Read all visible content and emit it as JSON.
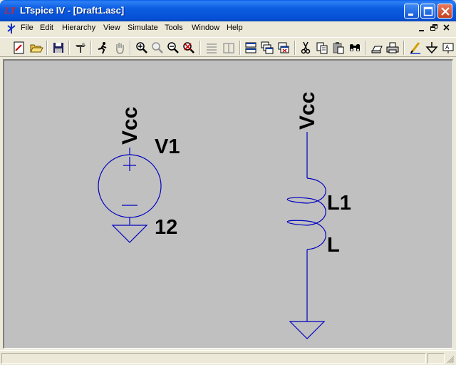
{
  "window": {
    "title": "LTspice IV - [Draft1.asc]",
    "logo_text": "LT"
  },
  "menu": {
    "file": "File",
    "edit": "Edit",
    "hierarchy": "Hierarchy",
    "view": "View",
    "simulate": "Simulate",
    "tools": "Tools",
    "window": "Window",
    "help": "Help"
  },
  "toolbar": {
    "icons": [
      "new-schematic-icon",
      "open-folder-icon",
      "save-icon",
      "control-panel-icon",
      "run-icon",
      "pan-hand-icon",
      "zoom-in-icon",
      "zoom-area-icon",
      "zoom-out-icon",
      "zoom-fit-icon",
      "tile-horizontal-icon",
      "tile-vertical-icon",
      "cascade-icon",
      "close-all-icon",
      "cut-icon",
      "copy-icon",
      "paste-icon",
      "find-icon",
      "print-setup-icon",
      "print-icon",
      "draw-wire-icon",
      "ground-icon",
      "label-net-icon"
    ]
  },
  "colors": {
    "wire": "#0000c0",
    "canvas": "#c0c0c0",
    "text": "#000000"
  },
  "schematic": {
    "voltage_source": {
      "flag": "Vcc",
      "name": "V1",
      "value": "12"
    },
    "inductor": {
      "flag": "Vcc",
      "name": "L1",
      "value": "L"
    }
  }
}
